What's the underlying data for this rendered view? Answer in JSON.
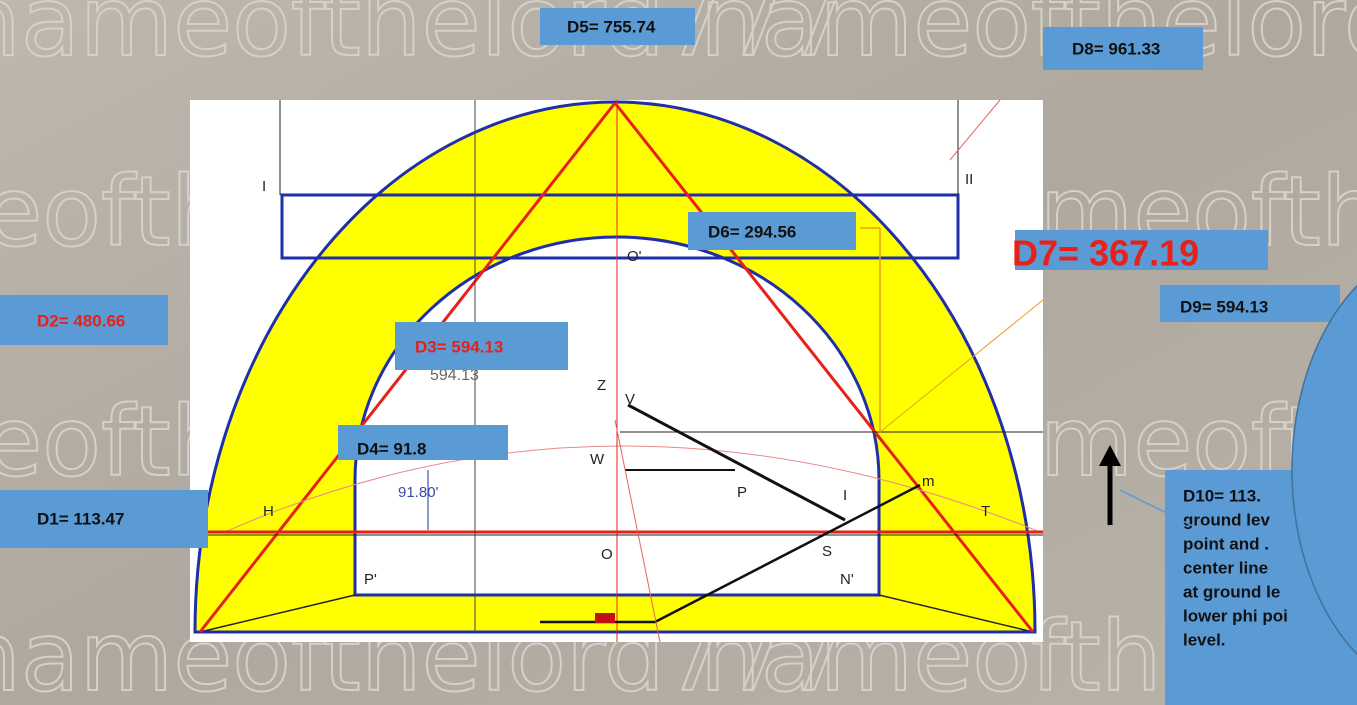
{
  "watermark": "nameofthelord777",
  "labels": {
    "d1": "D1= 113.47",
    "d2": "D2= 480.66",
    "d3": "D3= 594.13",
    "d4": "D4= 91.8",
    "d5": "D5= 755.74",
    "d6": "D6= 294.56",
    "d7": "D7= 367.19",
    "d8": "D8= 961.33",
    "d9": "D9= 594.13",
    "d10": [
      "D10= 113.",
      "ground lev",
      "point and .",
      "center line",
      "at ground le",
      "lower phi poi",
      "level."
    ]
  },
  "diagram": {
    "dim_594": "594.13",
    "dim_91": "91.80'",
    "points": [
      "I",
      "II",
      "O'",
      "Z",
      "V",
      "W",
      "P",
      "H",
      "I",
      "m",
      "T",
      "S",
      "O",
      "P'",
      "N'"
    ]
  }
}
